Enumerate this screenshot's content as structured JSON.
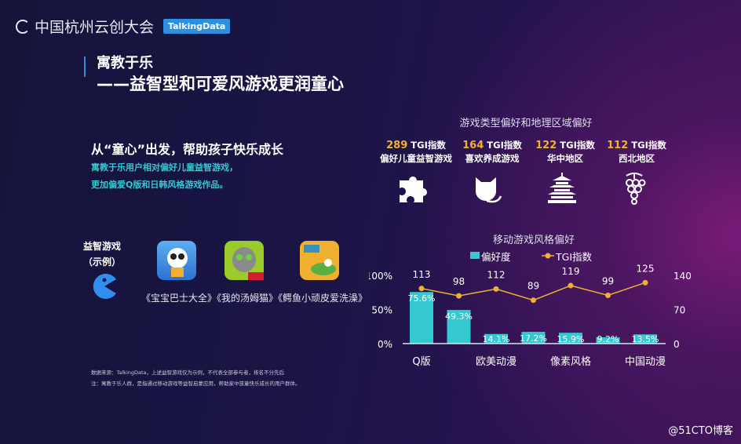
{
  "header": {
    "event_name": "中国杭州云创大会",
    "brand_badge": "TalkingData"
  },
  "title": {
    "line1": "寓教于乐",
    "line2": "——益智型和可爱风游戏更润童心"
  },
  "left": {
    "heading": "从“童心”出发，帮助孩子快乐成长",
    "desc1": "寓教于乐用户相对偏好儿童益智游戏，",
    "desc2": "更加偏爱Q版和日韩风格游戏作品。",
    "example_label1": "益智游戏",
    "example_label2": "（示例）",
    "apps_caption": "《宝宝巴士大全》《我的汤姆猫》《鳄鱼小顽皮爱洗澡》"
  },
  "notes": {
    "source": "数据来源：TalkingData，上述益智游戏仅为示例，不代表全部参与者，排名不分先后",
    "note": "注：寓教于乐人群，是指通过移动游戏等益智启蒙应用，帮助家中孩童快乐成长的用户群体。"
  },
  "stats_section": {
    "title": "游戏类型偏好和地理区域偏好",
    "items": [
      {
        "value": "289",
        "unit": "TGI指数",
        "label": "偏好儿童益智游戏",
        "icon": "puzzle-icon"
      },
      {
        "value": "164",
        "unit": "TGI指数",
        "label": "喜欢养成游戏",
        "icon": "cat-icon"
      },
      {
        "value": "122",
        "unit": "TGI指数",
        "label": "华中地区",
        "icon": "pagoda-icon"
      },
      {
        "value": "112",
        "unit": "TGI指数",
        "label": "西北地区",
        "icon": "grapes-icon"
      }
    ]
  },
  "chart_data": {
    "type": "bar",
    "title": "移动游戏风格偏好",
    "categories": [
      "Q版",
      "",
      "欧美动漫",
      "",
      "像素风格",
      "",
      "中国动漫"
    ],
    "series": [
      {
        "name": "偏好度",
        "type": "bar",
        "axis": "left",
        "values": [
          75.6,
          49.3,
          14.1,
          17.2,
          15.9,
          9.2,
          13.5
        ],
        "labels": [
          "75.6%",
          "49.3%",
          "14.1%",
          "17.2%",
          "15.9%",
          "9.2%",
          "13.5%"
        ],
        "color": "#35c8d0"
      },
      {
        "name": "TGI指数",
        "type": "line",
        "axis": "right",
        "values": [
          113,
          98,
          112,
          89,
          119,
          99,
          125
        ],
        "color": "#f0b030"
      }
    ],
    "left_axis": {
      "ylim": [
        0,
        100
      ],
      "ticks": [
        "0%",
        "50%",
        "100%"
      ]
    },
    "right_axis": {
      "ylim": [
        0,
        140
      ],
      "ticks": [
        "0",
        "70",
        "140"
      ]
    },
    "legend": "top",
    "grid": false
  },
  "watermark": "@51CTO博客",
  "colors": {
    "accent_teal": "#35c8d0",
    "accent_gold": "#f0b030",
    "brand_blue": "#2e8fe0"
  }
}
